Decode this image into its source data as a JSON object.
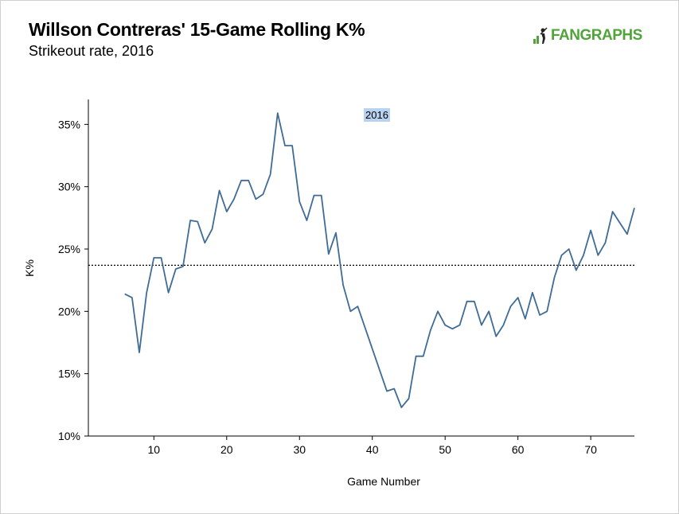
{
  "chart_data": {
    "type": "line",
    "title": "Willson Contreras' 15-Game Rolling K%",
    "subtitle": "Strikeout rate, 2016",
    "brand": "FANGRAPHS",
    "xlabel": "Game Number",
    "ylabel": "K%",
    "xlim": [
      1,
      76
    ],
    "ylim": [
      0.1,
      0.37
    ],
    "xticks": [
      10,
      20,
      30,
      40,
      50,
      60,
      70
    ],
    "yticks": [
      0.1,
      0.15,
      0.2,
      0.25,
      0.3,
      0.35
    ],
    "ytick_labels": [
      "10%",
      "15%",
      "20%",
      "25%",
      "30%",
      "35%"
    ],
    "legend": "top-center",
    "reference_line": 0.237,
    "series": [
      {
        "name": "2016",
        "color": "#3f6c96",
        "x": [
          6,
          7,
          8,
          9,
          10,
          11,
          12,
          13,
          14,
          15,
          16,
          17,
          18,
          19,
          20,
          21,
          22,
          23,
          24,
          25,
          26,
          27,
          28,
          29,
          30,
          31,
          32,
          33,
          34,
          35,
          36,
          37,
          38,
          42,
          43,
          44,
          45,
          46,
          47,
          48,
          49,
          50,
          51,
          52,
          53,
          54,
          55,
          56,
          57,
          58,
          59,
          60,
          61,
          62,
          63,
          64,
          65,
          66,
          67,
          68,
          69,
          70,
          71,
          72,
          73,
          74,
          75,
          76
        ],
        "y": [
          0.214,
          0.211,
          0.167,
          0.215,
          0.243,
          0.243,
          0.215,
          0.234,
          0.236,
          0.273,
          0.272,
          0.255,
          0.266,
          0.297,
          0.28,
          0.29,
          0.305,
          0.305,
          0.29,
          0.294,
          0.31,
          0.359,
          0.333,
          0.333,
          0.288,
          0.273,
          0.293,
          0.293,
          0.246,
          0.263,
          0.221,
          0.2,
          0.204,
          0.136,
          0.138,
          0.123,
          0.13,
          0.164,
          0.164,
          0.185,
          0.2,
          0.189,
          0.186,
          0.189,
          0.208,
          0.208,
          0.189,
          0.2,
          0.18,
          0.189,
          0.204,
          0.211,
          0.194,
          0.215,
          0.197,
          0.2,
          0.227,
          0.245,
          0.25,
          0.233,
          0.245,
          0.265,
          0.245,
          0.255,
          0.28,
          0.271,
          0.262,
          0.283
        ]
      }
    ]
  }
}
